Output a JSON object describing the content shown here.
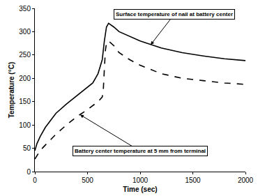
{
  "chart_data": {
    "type": "line",
    "x_label": "Time (sec)",
    "y_label": "Temperature (°C)",
    "xlim": [
      0,
      2000
    ],
    "xticks": [
      0,
      500,
      1000,
      1500,
      2000
    ],
    "ylim": [
      0,
      350
    ],
    "yticks": [
      0,
      50,
      100,
      150,
      200,
      250,
      300,
      350
    ],
    "grid": false,
    "series": [
      {
        "name": "Surface temperature of nail at battery center",
        "color": "#000000",
        "line_style": "solid",
        "x": [
          0,
          20,
          50,
          100,
          150,
          200,
          300,
          400,
          500,
          550,
          600,
          640,
          660,
          680,
          700,
          750,
          800,
          900,
          1000,
          1200,
          1400,
          1600,
          1800,
          2000
        ],
        "values": [
          45,
          60,
          75,
          95,
          110,
          125,
          145,
          163,
          180,
          190,
          210,
          240,
          280,
          310,
          318,
          310,
          300,
          290,
          280,
          265,
          255,
          248,
          242,
          238
        ]
      },
      {
        "name": "Battery center temperature at 5 mm from terminal",
        "color": "#000000",
        "line_style": "dash",
        "x": [
          0,
          20,
          50,
          100,
          150,
          200,
          300,
          400,
          500,
          600,
          640,
          650,
          660,
          670,
          680,
          700,
          750,
          800,
          900,
          1000,
          1200,
          1400,
          1600,
          1800,
          2000
        ],
        "values": [
          27,
          35,
          45,
          57,
          68,
          80,
          100,
          118,
          133,
          150,
          160,
          175,
          220,
          260,
          275,
          280,
          270,
          255,
          240,
          228,
          210,
          200,
          195,
          190,
          187
        ]
      }
    ]
  }
}
